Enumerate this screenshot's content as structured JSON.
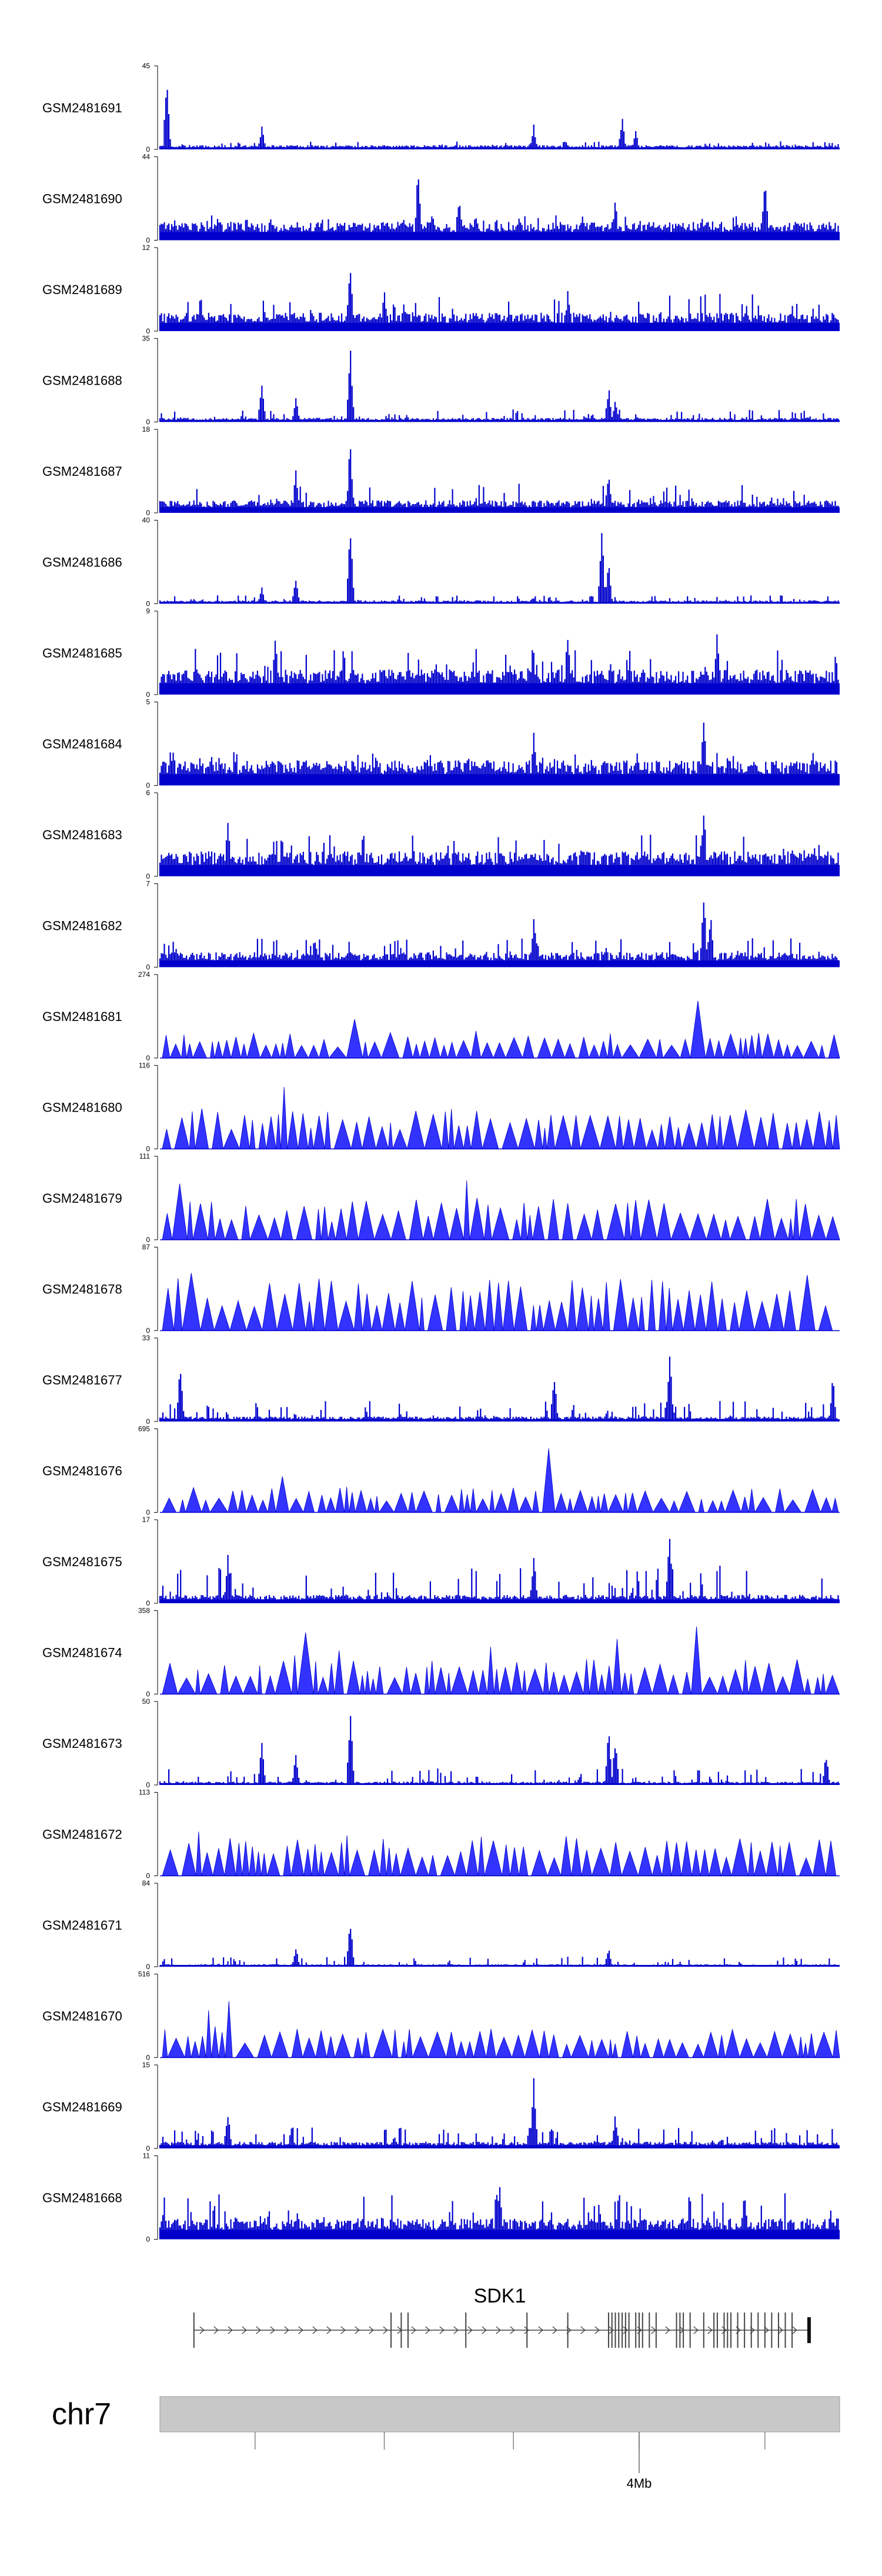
{
  "chart_data": {
    "type": "genome-tracks",
    "colors": {
      "signal": "#0000cc",
      "signal_light": "#3333ff",
      "axis": "#000000",
      "gene": "#444444",
      "chrom": "#c8c8c8"
    },
    "tracks": [
      {
        "name": "GSM2481691",
        "ymax": "45",
        "ymin": "0",
        "style": "bars",
        "base": 0.05,
        "noise": 0.1,
        "peaks": [
          [
            0.01,
            0.95
          ],
          [
            0.15,
            0.28
          ],
          [
            0.55,
            0.3
          ],
          [
            0.68,
            0.4
          ],
          [
            0.7,
            0.22
          ]
        ]
      },
      {
        "name": "GSM2481690",
        "ymax": "44",
        "ymin": "0",
        "style": "bars",
        "base": 0.22,
        "noise": 0.3,
        "peaks": [
          [
            0.38,
            0.95
          ],
          [
            0.44,
            0.6
          ],
          [
            0.67,
            0.5
          ],
          [
            0.89,
            0.9
          ]
        ]
      },
      {
        "name": "GSM2481689",
        "ymax": "12",
        "ymin": "0",
        "style": "bars",
        "base": 0.22,
        "noise": 0.45,
        "peaks": [
          [
            0.28,
            0.95
          ],
          [
            0.06,
            0.5
          ],
          [
            0.33,
            0.6
          ],
          [
            0.6,
            0.5
          ]
        ]
      },
      {
        "name": "GSM2481688",
        "ymax": "35",
        "ymin": "0",
        "style": "bars",
        "base": 0.05,
        "noise": 0.15,
        "peaks": [
          [
            0.28,
            0.95
          ],
          [
            0.15,
            0.55
          ],
          [
            0.2,
            0.3
          ],
          [
            0.66,
            0.45
          ],
          [
            0.67,
            0.3
          ]
        ]
      },
      {
        "name": "GSM2481687",
        "ymax": "18",
        "ymin": "0",
        "style": "bars",
        "base": 0.15,
        "noise": 0.35,
        "peaks": [
          [
            0.28,
            0.95
          ],
          [
            0.2,
            0.55
          ],
          [
            0.66,
            0.5
          ]
        ]
      },
      {
        "name": "GSM2481686",
        "ymax": "40",
        "ymin": "0",
        "style": "bars",
        "base": 0.04,
        "noise": 0.1,
        "peaks": [
          [
            0.28,
            0.95
          ],
          [
            0.65,
            0.95
          ],
          [
            0.66,
            0.55
          ],
          [
            0.2,
            0.35
          ],
          [
            0.15,
            0.2
          ]
        ]
      },
      {
        "name": "GSM2481685",
        "ymax": "9",
        "ymin": "0",
        "style": "bars",
        "base": 0.3,
        "noise": 0.55,
        "peaks": [
          [
            0.17,
            0.9
          ],
          [
            0.6,
            0.8
          ],
          [
            0.82,
            0.85
          ]
        ]
      },
      {
        "name": "GSM2481684",
        "ymax": "5",
        "ymin": "0",
        "style": "bars",
        "base": 0.3,
        "noise": 0.4,
        "peaks": [
          [
            0.8,
            0.98
          ],
          [
            0.55,
            0.7
          ]
        ]
      },
      {
        "name": "GSM2481683",
        "ymax": "6",
        "ymin": "0",
        "style": "bars",
        "base": 0.3,
        "noise": 0.5,
        "peaks": [
          [
            0.1,
            0.8
          ],
          [
            0.8,
            0.9
          ]
        ]
      },
      {
        "name": "GSM2481682",
        "ymax": "7",
        "ymin": "0",
        "style": "bars",
        "base": 0.18,
        "noise": 0.35,
        "peaks": [
          [
            0.8,
            0.98
          ],
          [
            0.81,
            0.75
          ],
          [
            0.55,
            0.65
          ]
        ]
      },
      {
        "name": "GSM2481681",
        "ymax": "274",
        "ymin": "0",
        "style": "tri",
        "base": 0.22,
        "noise": 0.15,
        "peaks": [
          [
            0.28,
            0.85
          ],
          [
            0.46,
            0.4
          ],
          [
            0.78,
            0.7
          ]
        ]
      },
      {
        "name": "GSM2481680",
        "ymax": "116",
        "ymin": "0",
        "style": "tri",
        "base": 0.35,
        "noise": 0.4,
        "peaks": [
          [
            0.18,
            0.9
          ],
          [
            0.38,
            0.55
          ],
          [
            0.9,
            0.55
          ]
        ]
      },
      {
        "name": "GSM2481679",
        "ymax": "111",
        "ymin": "0",
        "style": "tri",
        "base": 0.35,
        "noise": 0.2,
        "peaks": [
          [
            0.45,
            0.95
          ],
          [
            0.46,
            0.65
          ],
          [
            0.41,
            0.4
          ],
          [
            0.02,
            0.8
          ]
        ]
      },
      {
        "name": "GSM2481678",
        "ymax": "87",
        "ymin": "0",
        "style": "tri",
        "base": 0.45,
        "noise": 0.5,
        "peaks": [
          [
            0.03,
            0.9
          ],
          [
            0.34,
            0.65
          ],
          [
            0.94,
            0.7
          ]
        ]
      },
      {
        "name": "GSM2481677",
        "ymax": "33",
        "ymin": "0",
        "style": "bars",
        "base": 0.06,
        "noise": 0.25,
        "peaks": [
          [
            0.58,
            0.6
          ],
          [
            0.75,
            0.95
          ],
          [
            0.03,
            0.8
          ],
          [
            0.99,
            0.55
          ]
        ]
      },
      {
        "name": "GSM2481676",
        "ymax": "695",
        "ymin": "0",
        "style": "tri",
        "base": 0.22,
        "noise": 0.15,
        "peaks": [
          [
            0.56,
            0.98
          ],
          [
            0.17,
            0.45
          ],
          [
            0.9,
            0.5
          ]
        ]
      },
      {
        "name": "GSM2481675",
        "ymax": "17",
        "ymin": "0",
        "style": "bars",
        "base": 0.1,
        "noise": 0.45,
        "peaks": [
          [
            0.75,
            0.95
          ],
          [
            0.1,
            0.6
          ],
          [
            0.55,
            0.6
          ]
        ]
      },
      {
        "name": "GSM2481674",
        "ymax": "358",
        "ymin": "0",
        "style": "tri",
        "base": 0.3,
        "noise": 0.2,
        "peaks": [
          [
            0.2,
            0.95
          ],
          [
            0.67,
            0.95
          ],
          [
            0.78,
            0.95
          ],
          [
            0.26,
            0.7
          ],
          [
            0.48,
            0.65
          ]
        ]
      },
      {
        "name": "GSM2481673",
        "ymax": "50",
        "ymin": "0",
        "style": "bars",
        "base": 0.04,
        "noise": 0.2,
        "peaks": [
          [
            0.28,
            0.95
          ],
          [
            0.15,
            0.55
          ],
          [
            0.2,
            0.4
          ],
          [
            0.66,
            0.7
          ],
          [
            0.67,
            0.6
          ],
          [
            0.98,
            0.4
          ]
        ]
      },
      {
        "name": "GSM2481672",
        "ymax": "113",
        "ymin": "0",
        "style": "tri",
        "base": 0.35,
        "noise": 0.45,
        "peaks": [
          [
            0.05,
            0.7
          ],
          [
            0.32,
            0.65
          ],
          [
            0.92,
            0.6
          ]
        ]
      },
      {
        "name": "GSM2481671",
        "ymax": "84",
        "ymin": "0",
        "style": "bars",
        "base": 0.03,
        "noise": 0.12,
        "peaks": [
          [
            0.28,
            0.6
          ],
          [
            0.2,
            0.25
          ],
          [
            0.66,
            0.25
          ]
        ]
      },
      {
        "name": "GSM2481670",
        "ymax": "516",
        "ymin": "0",
        "style": "tri",
        "base": 0.25,
        "noise": 0.15,
        "peaks": [
          [
            0.1,
            0.98
          ],
          [
            0.07,
            0.7
          ],
          [
            0.81,
            0.75
          ],
          [
            0.24,
            0.45
          ]
        ]
      },
      {
        "name": "GSM2481669",
        "ymax": "15",
        "ymin": "0",
        "style": "bars",
        "base": 0.08,
        "noise": 0.25,
        "peaks": [
          [
            0.55,
            0.95
          ],
          [
            0.1,
            0.5
          ],
          [
            0.67,
            0.45
          ]
        ]
      },
      {
        "name": "GSM2481668",
        "ymax": "11",
        "ymin": "0",
        "style": "bars",
        "base": 0.25,
        "noise": 0.55,
        "peaks": [
          [
            0.5,
            0.75
          ],
          [
            0.86,
            0.7
          ]
        ]
      }
    ],
    "gene": {
      "name": "SDK1",
      "start": 0.05,
      "end": 0.955,
      "exons": [
        0.05,
        0.34,
        0.355,
        0.365,
        0.45,
        0.54,
        0.6,
        0.66,
        0.665,
        0.67,
        0.675,
        0.68,
        0.685,
        0.69,
        0.7,
        0.705,
        0.71,
        0.72,
        0.73,
        0.76,
        0.765,
        0.77,
        0.78,
        0.8,
        0.815,
        0.82,
        0.83,
        0.835,
        0.84,
        0.85,
        0.86,
        0.87,
        0.88,
        0.89,
        0.9,
        0.91,
        0.92,
        0.93,
        0.955
      ]
    },
    "chromosome": {
      "name": "chr7",
      "tick_label": "4Mb",
      "tick_label_position": 0.705,
      "ticks": [
        0.14,
        0.33,
        0.52,
        0.705,
        0.89
      ]
    }
  }
}
